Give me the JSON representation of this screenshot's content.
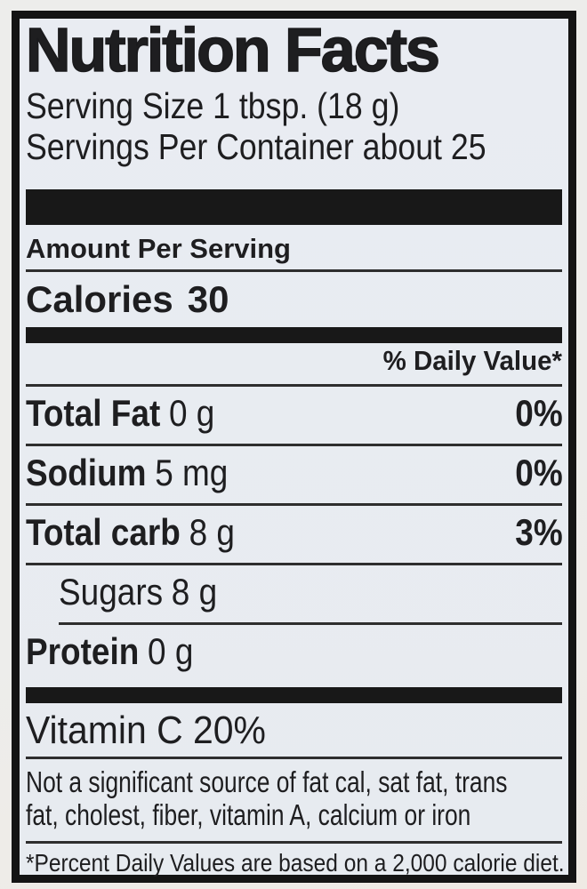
{
  "label": {
    "title": "Nutrition Facts",
    "serving_size_line": "Serving Size 1 tbsp. (18 g)",
    "servings_per_container_line": "Servings Per Container about 25",
    "amount_per_serving": "Amount Per Serving",
    "calories": {
      "label": "Calories",
      "value": "30"
    },
    "daily_value_header": "% Daily Value*",
    "rows": [
      {
        "name": "Total Fat",
        "amount": "0 g",
        "daily_value": "0%"
      },
      {
        "name": "Sodium",
        "amount": "5 mg",
        "daily_value": "0%"
      },
      {
        "name": "Total carb",
        "amount": "8 g",
        "daily_value": "3%"
      },
      {
        "name": "Sugars",
        "amount": "8 g",
        "daily_value": ""
      },
      {
        "name": "Protein",
        "amount": "0 g",
        "daily_value": ""
      }
    ],
    "vitamins_line": "Vitamin C 20%",
    "note_lines": [
      "Not a significant source of fat cal, sat fat, trans",
      "fat, cholest, fiber, vitamin A, calcium or iron"
    ],
    "footnote": "*Percent Daily Values are based on a 2,000 calorie diet.",
    "colors": {
      "ink": "#1e1e20",
      "label_background": "#e8ebf1",
      "page_background": "#edeeec",
      "divider": "#181818"
    }
  }
}
